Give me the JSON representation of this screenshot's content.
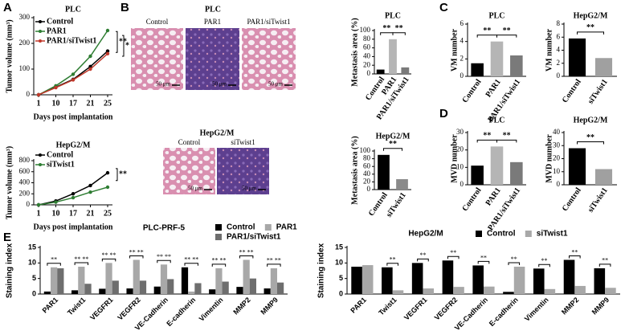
{
  "panels": [
    "A",
    "B",
    "C",
    "D",
    "E"
  ],
  "histology": {
    "top": {
      "title": "PLC",
      "images": [
        {
          "label": "Control",
          "scale": "50 μm"
        },
        {
          "label": "PAR1",
          "scale": "50 μm"
        },
        {
          "label": "PAR1/siTwist1",
          "scale": "50 μm"
        }
      ]
    },
    "bottom": {
      "title": "HepG2/M",
      "images": [
        {
          "label": "Control",
          "scale": "50 μm"
        },
        {
          "label": "siTwist1",
          "scale": "50 μm"
        }
      ]
    }
  },
  "chart_data": [
    {
      "type": "line",
      "title": "PLC",
      "xlabel": "Days post implantation",
      "ylabel": "Tumor volume (mm³)",
      "categories": [
        "1",
        "10",
        "17",
        "21",
        "25"
      ],
      "ylim": [
        0,
        300
      ],
      "yticks": [
        0,
        100,
        200,
        300
      ],
      "series": [
        {
          "name": "Control",
          "color": "#000000",
          "values": [
            0,
            30,
            60,
            110,
            170
          ]
        },
        {
          "name": "PAR1",
          "color": "#2e7d32",
          "values": [
            0,
            35,
            80,
            150,
            250
          ]
        },
        {
          "name": "PAR1/siTwist1",
          "color": "#c0392b",
          "values": [
            0,
            28,
            58,
            100,
            160
          ]
        }
      ],
      "annotations": [
        "**",
        "*"
      ]
    },
    {
      "type": "line",
      "title": "HepG2/M",
      "xlabel": "Days post implantation",
      "ylabel": "Tumor volume (mm³)",
      "categories": [
        "1",
        "10",
        "17",
        "21",
        "25"
      ],
      "ylim": [
        0,
        800
      ],
      "yticks": [
        0,
        200,
        400,
        600,
        800
      ],
      "series": [
        {
          "name": "Control",
          "color": "#000000",
          "values": [
            0,
            70,
            200,
            350,
            580
          ]
        },
        {
          "name": "siTwist1",
          "color": "#2e7d32",
          "values": [
            0,
            50,
            130,
            230,
            320
          ]
        }
      ],
      "annotations": [
        "**"
      ]
    },
    {
      "type": "bar",
      "title": "PLC",
      "ylabel": "Metastasis area (%)",
      "categories": [
        "Control",
        "PAR1",
        "PAR1/siTwist1"
      ],
      "values": [
        10,
        80,
        15
      ],
      "colors": [
        "#000000",
        "#b5b5b5",
        "#7a7a7a"
      ],
      "ylim": [
        0,
        100
      ],
      "yticks": [
        0,
        20,
        40,
        60,
        80,
        100
      ],
      "annotations": [
        {
          "between": [
            "Control",
            "PAR1"
          ],
          "text": "**"
        },
        {
          "between": [
            "PAR1",
            "PAR1/siTwist1"
          ],
          "text": "**"
        }
      ]
    },
    {
      "type": "bar",
      "title": "HepG2/M",
      "ylabel": "Metastasis area (%)",
      "categories": [
        "Control",
        "siTwist1"
      ],
      "values": [
        90,
        27
      ],
      "colors": [
        "#000000",
        "#8a8a8a"
      ],
      "ylim": [
        0,
        100
      ],
      "yticks": [
        0,
        20,
        40,
        60,
        80,
        100
      ],
      "annotations": [
        {
          "between": [
            "Control",
            "siTwist1"
          ],
          "text": "**"
        }
      ]
    },
    {
      "type": "bar",
      "title": "PLC",
      "ylabel": "VM number",
      "categories": [
        "Control",
        "PAR1",
        "PAR1/siTwist1"
      ],
      "values": [
        1.5,
        4,
        2.4
      ],
      "colors": [
        "#000000",
        "#b5b5b5",
        "#7a7a7a"
      ],
      "ylim": [
        0,
        6
      ],
      "yticks": [
        0,
        2,
        4,
        6
      ],
      "annotations": [
        {
          "between": [
            "Control",
            "PAR1"
          ],
          "text": "**"
        },
        {
          "between": [
            "PAR1",
            "PAR1/siTwist1"
          ],
          "text": "**"
        }
      ]
    },
    {
      "type": "bar",
      "title": "HepG2/M",
      "ylabel": "VM number",
      "categories": [
        "Control",
        "siTwist1"
      ],
      "values": [
        5.8,
        2.8
      ],
      "colors": [
        "#000000",
        "#a0a0a0"
      ],
      "ylim": [
        0,
        8
      ],
      "yticks": [
        0,
        2,
        4,
        6,
        8
      ],
      "annotations": [
        {
          "between": [
            "Control",
            "siTwist1"
          ],
          "text": "**"
        }
      ]
    },
    {
      "type": "bar",
      "title": "PLC",
      "ylabel": "MVD number",
      "categories": [
        "Control",
        "PAR1",
        "PAR1/siTwist1"
      ],
      "values": [
        11,
        22,
        13
      ],
      "colors": [
        "#000000",
        "#b5b5b5",
        "#7a7a7a"
      ],
      "ylim": [
        0,
        30
      ],
      "yticks": [
        0,
        10,
        20,
        30
      ],
      "annotations": [
        {
          "between": [
            "Control",
            "PAR1"
          ],
          "text": "**"
        },
        {
          "between": [
            "PAR1",
            "PAR1/siTwist1"
          ],
          "text": "**"
        }
      ]
    },
    {
      "type": "bar",
      "title": "HepG2/M",
      "ylabel": "MVD number",
      "categories": [
        "Control",
        "siTwist1"
      ],
      "values": [
        28,
        12
      ],
      "colors": [
        "#000000",
        "#a0a0a0"
      ],
      "ylim": [
        0,
        40
      ],
      "yticks": [
        0,
        10,
        20,
        30,
        40
      ],
      "annotations": [
        {
          "between": [
            "Control",
            "siTwist1"
          ],
          "text": "**"
        }
      ]
    },
    {
      "type": "grouped_bar",
      "title": "PLC-PRF-5",
      "ylabel": "Staining index",
      "categories": [
        "PAR1",
        "Twist1",
        "VEGFR1",
        "VEGFR2",
        "VE-Cadherin",
        "E-cadherin",
        "Vimentin",
        "MMP2",
        "MMP9"
      ],
      "ylim": [
        0,
        15
      ],
      "yticks": [
        0,
        5,
        10,
        15
      ],
      "series": [
        {
          "name": "Control",
          "color": "#000000",
          "values": [
            0.8,
            1.2,
            1.7,
            1.8,
            2.4,
            8.6,
            1.5,
            2.3,
            1.8
          ]
        },
        {
          "name": "PAR1",
          "color": "#a8a8a8",
          "values": [
            8.6,
            8.8,
            10,
            11,
            9.5,
            0.8,
            8.3,
            11,
            8.3
          ]
        },
        {
          "name": "PAR1/siTwist1",
          "color": "#6e6e6e",
          "values": [
            8.3,
            3.3,
            4.3,
            4.3,
            4.8,
            3.5,
            4,
            5,
            3.7
          ]
        }
      ],
      "annotations": [
        {
          "category": "PAR1",
          "text": "**"
        },
        {
          "category": "Twist1",
          "text": "** **"
        },
        {
          "category": "VEGFR1",
          "text": "** **"
        },
        {
          "category": "VEGFR2",
          "text": "** **"
        },
        {
          "category": "VE-Cadherin",
          "text": "** **"
        },
        {
          "category": "E-cadherin",
          "text": "** **"
        },
        {
          "category": "Vimentin",
          "text": "** **"
        },
        {
          "category": "MMP2",
          "text": "** **"
        },
        {
          "category": "MMP9",
          "text": "** **"
        }
      ]
    },
    {
      "type": "grouped_bar",
      "title": "HepG2/M",
      "ylabel": "Staining index",
      "categories": [
        "PAR1",
        "Twist1",
        "VEGFR1",
        "VEGFR2",
        "VE-Cadherin",
        "E-cadherin",
        "Vimentin",
        "MMP2",
        "MMP9"
      ],
      "ylim": [
        0,
        15
      ],
      "yticks": [
        0,
        5,
        10,
        15
      ],
      "series": [
        {
          "name": "Control",
          "color": "#000000",
          "values": [
            8.8,
            8.6,
            10,
            10.8,
            9.2,
            0.7,
            8.2,
            11,
            8.3
          ]
        },
        {
          "name": "siTwist1",
          "color": "#a8a8a8",
          "values": [
            9.3,
            1.2,
            1.8,
            2.3,
            2.4,
            8.8,
            1.6,
            2.6,
            2
          ]
        }
      ],
      "annotations": [
        {
          "category": "Twist1",
          "text": "**"
        },
        {
          "category": "VEGFR1",
          "text": "**"
        },
        {
          "category": "VEGFR2",
          "text": "**"
        },
        {
          "category": "VE-Cadherin",
          "text": "**"
        },
        {
          "category": "E-cadherin",
          "text": "**"
        },
        {
          "category": "Vimentin",
          "text": "**"
        },
        {
          "category": "MMP2",
          "text": "**"
        },
        {
          "category": "MMP9",
          "text": "**"
        }
      ]
    }
  ]
}
